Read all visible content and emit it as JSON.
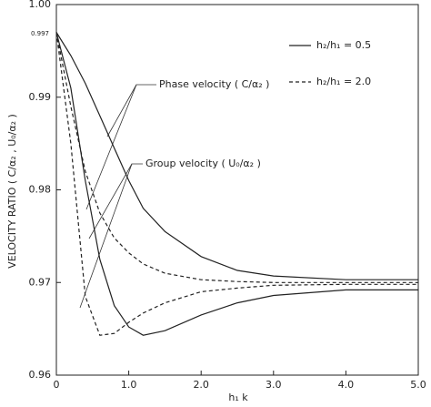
{
  "chart_data": {
    "type": "line",
    "ylabel": "VELOCITY RATIO ( C/α₂ , U₀/α₂ )",
    "xlabel": "h₁ k",
    "annotations": [
      "0.997",
      "Phase velocity ( C/α₂ )",
      "Group velocity ( U₀/α₂ )"
    ],
    "x": [
      0,
      0.2,
      0.4,
      0.6,
      0.8,
      1.0,
      1.2,
      1.5,
      2.0,
      2.5,
      3.0,
      4.0,
      5.0
    ],
    "series": [
      {
        "style": "solid",
        "color": "#222",
        "values": [
          0.997,
          0.9945,
          0.9915,
          0.988,
          0.9845,
          0.981,
          0.978,
          0.9755,
          0.9728,
          0.9713,
          0.9707,
          0.9703,
          0.9703
        ]
      },
      {
        "style": "solid",
        "color": "#222",
        "values": [
          0.997,
          0.991,
          0.981,
          0.9725,
          0.9675,
          0.9652,
          0.9643,
          0.9648,
          0.9665,
          0.9678,
          0.9686,
          0.9692,
          0.9692
        ]
      },
      {
        "style": "dashed",
        "color": "#222",
        "values": [
          0.997,
          0.989,
          0.982,
          0.9775,
          0.9748,
          0.9732,
          0.972,
          0.971,
          0.9703,
          0.9701,
          0.97,
          0.97,
          0.97
        ]
      },
      {
        "style": "dashed",
        "color": "#222",
        "values": [
          0.997,
          0.985,
          0.9685,
          0.9643,
          0.9645,
          0.9657,
          0.9667,
          0.9678,
          0.969,
          0.9694,
          0.9697,
          0.9698,
          0.9698
        ]
      }
    ],
    "legend": [
      {
        "label": "h₂/h₁ = 0.5",
        "style": "solid"
      },
      {
        "label": "h₂/h₁ = 2.0",
        "style": "dashed"
      }
    ],
    "xlim": [
      0,
      5
    ],
    "ylim": [
      0.96,
      1
    ],
    "xticks": [
      0,
      {
        "value": 1,
        "label": "1.0"
      },
      {
        "value": 2,
        "label": "2.0"
      },
      {
        "value": 3,
        "label": "3.0"
      },
      {
        "value": 4,
        "label": "4.0"
      },
      {
        "value": 5,
        "label": "5.0"
      }
    ],
    "yticks": [
      0.96,
      0.97,
      0.98,
      0.99,
      {
        "value": 1,
        "label": "1.00"
      }
    ],
    "grid": false
  }
}
